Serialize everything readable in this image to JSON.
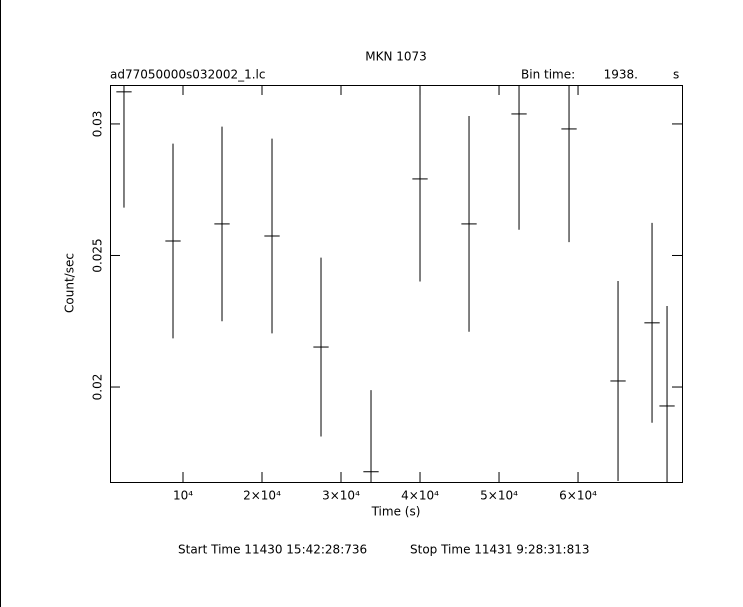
{
  "chart_data": {
    "type": "errorbar",
    "title": "MKN 1073",
    "file_name": "ad77050000s032002_1.lc",
    "bin_time_label": "Bin time:",
    "bin_time": {
      "value": 1938,
      "label": "1938."
    },
    "bin_time_unit": "s",
    "xlabel": "Time (s)",
    "ylabel": "Count/sec",
    "start_time": "Start Time 11430  15:42:28:736",
    "stop_time": "Stop Time 11431  9:28:31:813",
    "color": "#000000",
    "x": [
      2530,
      8735,
      14937,
      21266,
      27468,
      33797,
      39999,
      46203,
      52532,
      58861,
      65063,
      69367,
      71266
    ],
    "values": [
      0.03122,
      0.02555,
      0.0262,
      0.02574,
      0.02152,
      0.01678,
      0.02791,
      0.0262,
      0.03038,
      0.02981,
      0.02023,
      0.02244,
      0.01928
    ],
    "errors": [
      0.0044,
      0.0037,
      0.0037,
      0.0037,
      0.0034,
      0.0031,
      0.0039,
      0.0041,
      0.0044,
      0.0043,
      0.0038,
      0.0038,
      0.0038
    ],
    "xlim": [
      760,
      73160
    ],
    "ylim": [
      0.01639,
      0.03148
    ],
    "xticks": [
      {
        "value": 10000,
        "label": "10⁴"
      },
      {
        "value": 20000,
        "label": "2×10⁴"
      },
      {
        "value": 30000,
        "label": "3×10⁴"
      },
      {
        "value": 40000,
        "label": "4×10⁴"
      },
      {
        "value": 50000,
        "label": "5×10⁴"
      },
      {
        "value": 60000,
        "label": "6×10⁴"
      }
    ],
    "yticks": [
      0.02,
      0.025,
      0.03
    ]
  }
}
